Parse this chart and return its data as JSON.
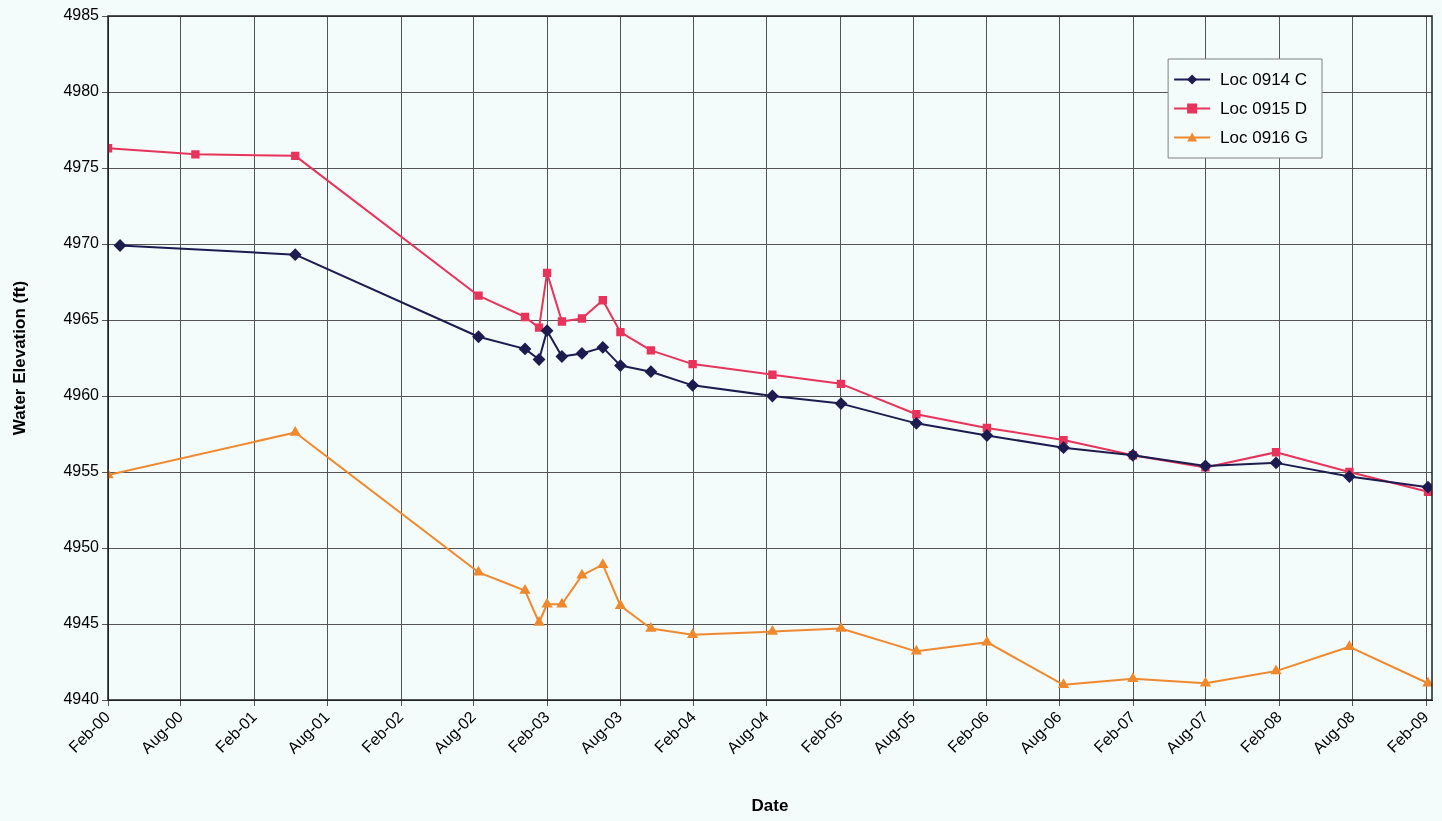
{
  "chart_data": {
    "type": "line",
    "xlabel": "Date",
    "ylabel": "Water Elevation (ft)",
    "xlim": [
      "2000-02-01",
      "2009-02-15"
    ],
    "xticks": [
      {
        "value": "2000-02-01",
        "label": "Feb-00"
      },
      {
        "value": "2000-08-01",
        "label": "Aug-00"
      },
      {
        "value": "2001-02-01",
        "label": "Feb-01"
      },
      {
        "value": "2001-08-01",
        "label": "Aug-01"
      },
      {
        "value": "2002-02-01",
        "label": "Feb-02"
      },
      {
        "value": "2002-08-01",
        "label": "Aug-02"
      },
      {
        "value": "2003-02-01",
        "label": "Feb-03"
      },
      {
        "value": "2003-08-01",
        "label": "Aug-03"
      },
      {
        "value": "2004-02-01",
        "label": "Feb-04"
      },
      {
        "value": "2004-08-01",
        "label": "Aug-04"
      },
      {
        "value": "2005-02-01",
        "label": "Feb-05"
      },
      {
        "value": "2005-08-01",
        "label": "Aug-05"
      },
      {
        "value": "2006-02-01",
        "label": "Feb-06"
      },
      {
        "value": "2006-08-01",
        "label": "Aug-06"
      },
      {
        "value": "2007-02-01",
        "label": "Feb-07"
      },
      {
        "value": "2007-08-01",
        "label": "Aug-07"
      },
      {
        "value": "2008-02-01",
        "label": "Feb-08"
      },
      {
        "value": "2008-08-01",
        "label": "Aug-08"
      },
      {
        "value": "2009-02-01",
        "label": "Feb-09"
      }
    ],
    "ylim": [
      4940,
      4985
    ],
    "yticks": [
      4940,
      4945,
      4950,
      4955,
      4960,
      4965,
      4970,
      4975,
      4980,
      4985
    ],
    "grid": true,
    "legend": "top right",
    "line_style": "solid",
    "series": [
      {
        "name": "Loc 0914 C",
        "color": "#1c1c50",
        "marker": "diamond",
        "x": [
          "2000-03-02",
          "2001-05-13",
          "2002-08-13",
          "2002-12-07",
          "2003-01-11",
          "2003-01-31",
          "2003-03-09",
          "2003-04-28",
          "2003-06-19",
          "2003-08-02",
          "2003-10-17",
          "2004-01-29",
          "2004-08-15",
          "2005-02-02",
          "2005-08-09",
          "2006-02-01",
          "2006-08-11",
          "2007-01-31",
          "2007-07-31",
          "2008-01-23",
          "2008-07-24",
          "2009-02-05"
        ],
        "values": [
          4969.9,
          4969.3,
          4963.9,
          4963.1,
          4962.4,
          4964.3,
          4962.6,
          4962.8,
          4963.2,
          4962.0,
          4961.6,
          4960.7,
          4960.0,
          4959.5,
          4958.2,
          4957.4,
          4956.6,
          4956.1,
          4955.4,
          4955.6,
          4954.7,
          4954.0
        ]
      },
      {
        "name": "Loc 0915 D",
        "color": "#e8335a",
        "marker": "square",
        "x": [
          "2000-02-01",
          "2000-09-06",
          "2001-05-13",
          "2002-08-13",
          "2002-12-07",
          "2003-01-11",
          "2003-01-31",
          "2003-03-09",
          "2003-04-28",
          "2003-06-19",
          "2003-08-02",
          "2003-10-17",
          "2004-01-29",
          "2004-08-15",
          "2005-02-02",
          "2005-08-09",
          "2006-02-01",
          "2006-08-11",
          "2007-01-31",
          "2007-07-31",
          "2008-01-23",
          "2008-07-24",
          "2009-02-05"
        ],
        "values": [
          4976.3,
          4975.9,
          4975.8,
          4966.6,
          4965.2,
          4964.5,
          4968.1,
          4964.9,
          4965.1,
          4966.3,
          4964.2,
          4963.0,
          4962.1,
          4961.4,
          4960.8,
          4958.8,
          4957.9,
          4957.1,
          4956.1,
          4955.3,
          4956.3,
          4955.0,
          4953.7
        ]
      },
      {
        "name": "Loc 0916 G",
        "color": "#f0892e",
        "marker": "triangle",
        "x": [
          "2000-02-01",
          "2001-05-13",
          "2002-08-13",
          "2002-12-07",
          "2003-01-11",
          "2003-01-31",
          "2003-03-09",
          "2003-04-28",
          "2003-06-19",
          "2003-08-02",
          "2003-10-17",
          "2004-01-29",
          "2004-08-15",
          "2005-02-02",
          "2005-08-09",
          "2006-02-01",
          "2006-08-11",
          "2007-01-31",
          "2007-07-31",
          "2008-01-23",
          "2008-07-24",
          "2009-02-05"
        ],
        "values": [
          4954.8,
          4957.6,
          4948.4,
          4947.2,
          4945.1,
          4946.3,
          4946.3,
          4948.2,
          4948.9,
          4946.2,
          4944.7,
          4944.3,
          4944.5,
          4944.7,
          4943.2,
          4943.8,
          4941.0,
          4941.4,
          4941.1,
          4941.9,
          4943.5,
          4941.1
        ]
      }
    ]
  }
}
